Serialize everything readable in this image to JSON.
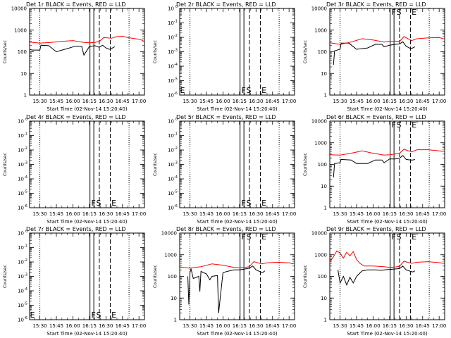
{
  "chart_data": {
    "type": "line",
    "xlabel": "Start Time (02-Nov-14 15:20:40)",
    "ylabel": "Counts/sec",
    "x_tick_labels": [
      "15:30",
      "15:45",
      "16:00",
      "16:15",
      "16:30",
      "16:45",
      "17:00"
    ],
    "x_ticks_min": [
      30,
      45,
      60,
      75,
      90,
      105,
      120
    ],
    "xlim_min": [
      20.67,
      125
    ],
    "solid_lines_min": [
      75.5,
      79
    ],
    "dashed_lines_min": [
      84,
      94
    ],
    "dotted_lines_min": [
      30,
      111
    ],
    "series_colors": {
      "events": "#000000",
      "lld": "#ff0000"
    },
    "panels": [
      {
        "title": "Det 1r BLACK = Events, RED = LLD",
        "scale": "log",
        "ylim": [
          1,
          10000
        ],
        "y_tick_labels": [
          "1",
          "10",
          "100",
          "1000",
          "10000"
        ],
        "y_ticks": [
          1,
          10,
          100,
          1000,
          10000
        ],
        "markers": [],
        "red_noisy": false,
        "black": [
          [
            20.67,
            130
          ],
          [
            23,
            120
          ],
          [
            30,
            120
          ],
          [
            31,
            200
          ],
          [
            38,
            190
          ],
          [
            45,
            100
          ],
          [
            55,
            140
          ],
          [
            62,
            180
          ],
          [
            68,
            180
          ],
          [
            70,
            70
          ],
          [
            75,
            175
          ],
          [
            80,
            190
          ],
          [
            84,
            160
          ],
          [
            87,
            200
          ],
          [
            90,
            150
          ],
          [
            93,
            130
          ],
          [
            94,
            130
          ],
          [
            96,
            150
          ],
          [
            98,
            170
          ]
        ],
        "red": [
          [
            20.67,
            280
          ],
          [
            30,
            250
          ],
          [
            40,
            270
          ],
          [
            50,
            300
          ],
          [
            60,
            330
          ],
          [
            70,
            270
          ],
          [
            75,
            260
          ],
          [
            80,
            270
          ],
          [
            84,
            300
          ],
          [
            88,
            450
          ],
          [
            95,
            420
          ],
          [
            100,
            500
          ],
          [
            105,
            520
          ],
          [
            110,
            450
          ],
          [
            120,
            380
          ],
          [
            124,
            330
          ]
        ]
      },
      {
        "title": "Det 2r BLACK = Events, RED = LLD",
        "scale": "exp",
        "ylim": [
          1e-06,
          1
        ],
        "y_tick_labels": [
          "10",
          "10",
          "10",
          "10",
          "10",
          "10",
          "10"
        ],
        "y_ticks": [
          1e-06,
          1e-05,
          0.0001,
          0.001,
          0.01,
          0.1,
          1
        ],
        "y_exponents": [
          "-6",
          "-5",
          "-4",
          "-3",
          "-2",
          "-1",
          "0"
        ],
        "markers": [
          "E",
          "F",
          "S",
          "E"
        ],
        "red_noisy": false,
        "black": [],
        "red": []
      },
      {
        "title": "Det 3r BLACK = Events, RED = LLD",
        "scale": "log",
        "ylim": [
          1,
          10000
        ],
        "y_tick_labels": [
          "1",
          "10",
          "100",
          "1000",
          "10000"
        ],
        "y_ticks": [
          1,
          10,
          100,
          1000,
          10000
        ],
        "markers": [
          "F",
          "S",
          "E"
        ],
        "red_noisy": false,
        "black": [
          [
            24,
            25
          ],
          [
            25,
            110
          ],
          [
            30,
            130
          ],
          [
            31,
            250
          ],
          [
            38,
            250
          ],
          [
            45,
            130
          ],
          [
            55,
            150
          ],
          [
            62,
            220
          ],
          [
            68,
            220
          ],
          [
            70,
            170
          ],
          [
            75,
            200
          ],
          [
            80,
            220
          ],
          [
            84,
            230
          ],
          [
            87,
            290
          ],
          [
            90,
            180
          ],
          [
            94,
            140
          ],
          [
            96,
            150
          ],
          [
            98,
            170
          ]
        ],
        "red": [
          [
            20.67,
            260
          ],
          [
            30,
            220
          ],
          [
            40,
            280
          ],
          [
            50,
            400
          ],
          [
            60,
            350
          ],
          [
            70,
            280
          ],
          [
            75,
            300
          ],
          [
            80,
            310
          ],
          [
            84,
            300
          ],
          [
            88,
            500
          ],
          [
            95,
            330
          ],
          [
            100,
            400
          ],
          [
            110,
            440
          ],
          [
            120,
            450
          ],
          [
            124,
            400
          ]
        ]
      },
      {
        "title": "Det 4r BLACK = Events, RED = LLD",
        "scale": "exp",
        "ylim": [
          1e-06,
          1
        ],
        "y_tick_labels": [
          "10",
          "10",
          "10",
          "10",
          "10",
          "10",
          "10"
        ],
        "y_ticks": [
          1e-06,
          1e-05,
          0.0001,
          0.001,
          0.01,
          0.1,
          1
        ],
        "y_exponents": [
          "-6",
          "-5",
          "-4",
          "-3",
          "-2",
          "-1",
          "0"
        ],
        "markers": [
          "F",
          "S",
          "E"
        ],
        "red_noisy": false,
        "black": [],
        "red": []
      },
      {
        "title": "Det 5r BLACK = Events, RED = LLD",
        "scale": "exp",
        "ylim": [
          1e-06,
          1
        ],
        "y_tick_labels": [
          "10",
          "10",
          "10",
          "10",
          "10",
          "10",
          "10"
        ],
        "y_ticks": [
          1e-06,
          1e-05,
          0.0001,
          0.001,
          0.01,
          0.1,
          1
        ],
        "y_exponents": [
          "-6",
          "-5",
          "-4",
          "-3",
          "-2",
          "-1",
          "0"
        ],
        "markers": [
          "F",
          "S",
          "E"
        ],
        "red_noisy": false,
        "black": [],
        "red": []
      },
      {
        "title": "Det 6r BLACK = Events, RED = LLD",
        "scale": "log",
        "ylim": [
          1,
          10000
        ],
        "y_tick_labels": [
          "1",
          "10",
          "100",
          "1000",
          "10000"
        ],
        "y_ticks": [
          1,
          10,
          100,
          1000,
          10000
        ],
        "markers": [
          "F",
          "S",
          "E"
        ],
        "red_noisy": false,
        "black": [
          [
            24,
            25
          ],
          [
            25,
            110
          ],
          [
            30,
            120
          ],
          [
            31,
            170
          ],
          [
            40,
            160
          ],
          [
            45,
            110
          ],
          [
            55,
            110
          ],
          [
            62,
            160
          ],
          [
            68,
            160
          ],
          [
            70,
            120
          ],
          [
            75,
            180
          ],
          [
            80,
            180
          ],
          [
            84,
            190
          ],
          [
            87,
            260
          ],
          [
            90,
            170
          ],
          [
            94,
            160
          ],
          [
            96,
            160
          ],
          [
            98,
            170
          ]
        ],
        "red": [
          [
            20.67,
            280
          ],
          [
            30,
            270
          ],
          [
            40,
            330
          ],
          [
            50,
            420
          ],
          [
            60,
            330
          ],
          [
            70,
            270
          ],
          [
            75,
            280
          ],
          [
            80,
            300
          ],
          [
            84,
            330
          ],
          [
            88,
            500
          ],
          [
            95,
            380
          ],
          [
            100,
            480
          ],
          [
            110,
            480
          ],
          [
            120,
            420
          ],
          [
            124,
            400
          ]
        ]
      },
      {
        "title": "Det 7r BLACK = Events, RED = LLD",
        "scale": "exp",
        "ylim": [
          1e-06,
          1
        ],
        "y_tick_labels": [
          "10",
          "10",
          "10",
          "10",
          "10",
          "10",
          "10"
        ],
        "y_ticks": [
          1e-06,
          1e-05,
          0.0001,
          0.001,
          0.01,
          0.1,
          1
        ],
        "y_exponents": [
          "-6",
          "-5",
          "-4",
          "-3",
          "-2",
          "-1",
          "0"
        ],
        "markers": [
          "E",
          "F",
          "S",
          "E"
        ],
        "red_noisy": false,
        "black": [],
        "red": []
      },
      {
        "title": "Det 8r BLACK = Events, RED = LLD",
        "scale": "log",
        "ylim": [
          1,
          10000
        ],
        "y_tick_labels": [
          "1",
          "10",
          "100",
          "1000",
          "10000"
        ],
        "y_ticks": [
          1,
          10,
          100,
          1000,
          10000
        ],
        "markers": [
          "F",
          "S",
          "E"
        ],
        "red_noisy": false,
        "black": [
          [
            28,
            100
          ],
          [
            29,
            5
          ],
          [
            30,
            150
          ],
          [
            31,
            220
          ],
          [
            33,
            80
          ],
          [
            38,
            100
          ],
          [
            39,
            20
          ],
          [
            40,
            170
          ],
          [
            45,
            130
          ],
          [
            48,
            70
          ],
          [
            50,
            100
          ],
          [
            55,
            110
          ],
          [
            56,
            2
          ],
          [
            60,
            150
          ],
          [
            62,
            160
          ],
          [
            68,
            190
          ],
          [
            70,
            200
          ],
          [
            75,
            200
          ],
          [
            80,
            220
          ],
          [
            84,
            240
          ],
          [
            87,
            300
          ],
          [
            90,
            200
          ],
          [
            94,
            160
          ],
          [
            96,
            150
          ],
          [
            98,
            180
          ]
        ],
        "red": [
          [
            20.67,
            270
          ],
          [
            30,
            240
          ],
          [
            40,
            280
          ],
          [
            50,
            380
          ],
          [
            60,
            330
          ],
          [
            70,
            260
          ],
          [
            75,
            250
          ],
          [
            80,
            260
          ],
          [
            84,
            280
          ],
          [
            88,
            480
          ],
          [
            95,
            380
          ],
          [
            100,
            420
          ],
          [
            110,
            450
          ],
          [
            120,
            420
          ],
          [
            124,
            380
          ]
        ]
      },
      {
        "title": "Det 9r BLACK = Events, RED = LLD",
        "scale": "log",
        "ylim": [
          1,
          10000
        ],
        "y_tick_labels": [
          "1",
          "10",
          "100",
          "1000",
          "10000"
        ],
        "y_ticks": [
          1,
          10,
          100,
          1000,
          10000
        ],
        "markers": [
          "F",
          "S",
          "E"
        ],
        "red_noisy": true,
        "black": [
          [
            28,
            200
          ],
          [
            30,
            50
          ],
          [
            33,
            100
          ],
          [
            36,
            40
          ],
          [
            39,
            90
          ],
          [
            42,
            50
          ],
          [
            45,
            100
          ],
          [
            50,
            180
          ],
          [
            55,
            200
          ],
          [
            62,
            200
          ],
          [
            68,
            190
          ],
          [
            70,
            200
          ],
          [
            75,
            210
          ],
          [
            80,
            220
          ],
          [
            84,
            230
          ],
          [
            87,
            300
          ],
          [
            90,
            200
          ],
          [
            94,
            170
          ],
          [
            96,
            160
          ],
          [
            98,
            180
          ]
        ],
        "red": [
          [
            20.67,
            450
          ],
          [
            24,
            800
          ],
          [
            27,
            1500
          ],
          [
            30,
            1200
          ],
          [
            33,
            700
          ],
          [
            36,
            1300
          ],
          [
            39,
            900
          ],
          [
            42,
            1400
          ],
          [
            45,
            600
          ],
          [
            48,
            400
          ],
          [
            52,
            300
          ],
          [
            60,
            300
          ],
          [
            70,
            280
          ],
          [
            75,
            260
          ],
          [
            80,
            270
          ],
          [
            84,
            290
          ],
          [
            88,
            500
          ],
          [
            95,
            400
          ],
          [
            100,
            450
          ],
          [
            110,
            480
          ],
          [
            120,
            430
          ],
          [
            124,
            400
          ]
        ]
      }
    ]
  }
}
